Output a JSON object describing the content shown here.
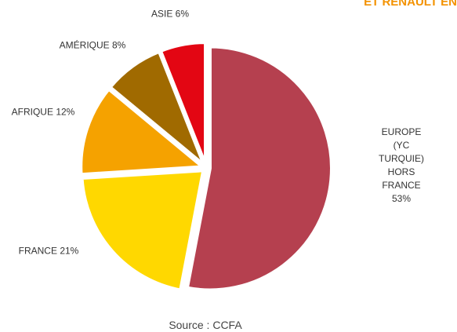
{
  "chart_data": {
    "type": "pie",
    "title": "ET RENAULT EN",
    "categories": [
      "EUROPE\n(YC TURQUIE)\nHORS FRANCE",
      "FRANCE",
      "AFRIQUE",
      "AMÉRIQUE",
      "ASIE"
    ],
    "values": [
      53,
      21,
      12,
      8,
      6
    ],
    "value_labels": [
      "53%",
      "21%",
      "12%",
      "8%",
      "6%"
    ],
    "colors": [
      "#b5404f",
      "#ffd800",
      "#f5a200",
      "#a06a00",
      "#e30613"
    ],
    "note": "Source : CCFA"
  }
}
